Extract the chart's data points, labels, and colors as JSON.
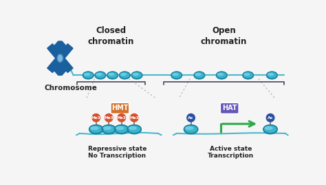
{
  "bg_color": "#f5f5f5",
  "title_closed": "Closed\nchromatin",
  "title_open": "Open\nchromatin",
  "label_chromosome": "Chromosome",
  "label_repressive": "Repressive state",
  "label_no_transcription": "No Transcription",
  "label_active": "Active state",
  "label_transcription": "Transcription",
  "label_hmt": "HMT",
  "label_hat": "HAT",
  "label_me3": "Me3",
  "label_ac": "Ac",
  "color_chromosome": "#1a5f9e",
  "color_chrom_light": "#4a8fc0",
  "color_chrom_lighter": "#7ab8e0",
  "color_nucleosome_body": "#3ab5cc",
  "color_nucleosome_dark": "#1a7fa0",
  "color_nucleosome_light": "#90ddf0",
  "color_dna": "#4ab8cc",
  "color_me3": "#d94f2a",
  "color_ac": "#2a4fa0",
  "color_hmt_bg": "#d4722a",
  "color_hat_bg": "#6655bb",
  "color_arrow_green": "#2ea84b",
  "color_text_dark": "#222222",
  "color_bracket": "#555566",
  "color_dotted": "#aaaaaa"
}
